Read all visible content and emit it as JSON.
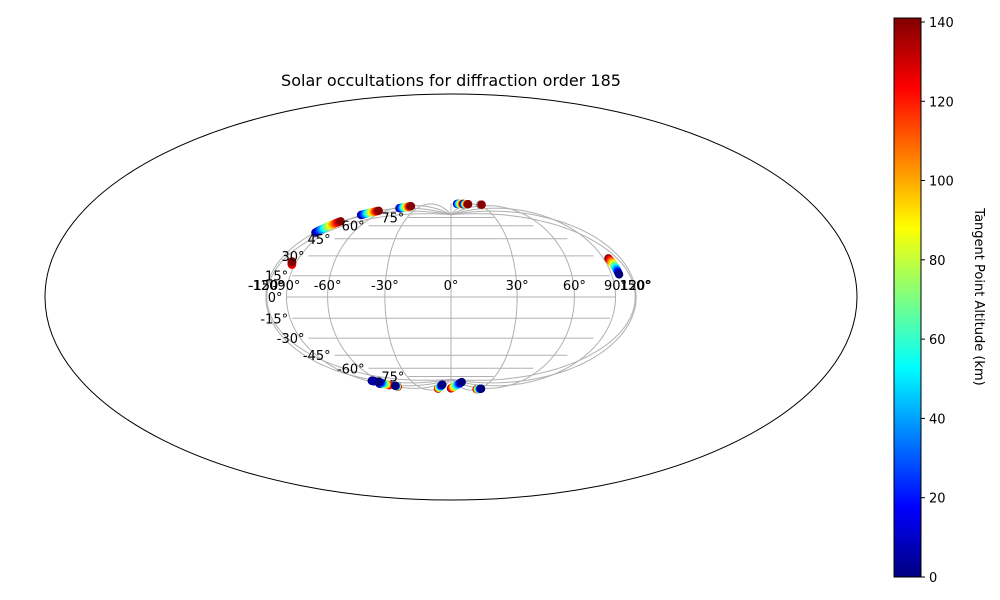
{
  "chart_data": {
    "type": "scatter",
    "projection": "aitoff",
    "title": "Solar occultations for diffraction order 185",
    "grid": true,
    "x_ticks": [
      "-150°",
      "-120°",
      "-90°",
      "-60°",
      "-30°",
      "0°",
      "30°",
      "60°",
      "90°",
      "120°",
      "150°"
    ],
    "y_ticks": [
      "75°",
      "60°",
      "45°",
      "30°",
      "15°",
      "0°",
      "-15°",
      "-30°",
      "-45°",
      "-60°",
      "-75°"
    ],
    "colorbar": {
      "label": "Tangent Point Altitude (km)",
      "colormap": "jet",
      "range": [
        0,
        141
      ],
      "ticks": [
        "0",
        "20",
        "40",
        "60",
        "80",
        "100",
        "120",
        "140"
      ],
      "tick_values": [
        0,
        20,
        40,
        60,
        80,
        100,
        120,
        140
      ],
      "colors": [
        "#00007f",
        "#0000ff",
        "#007fff",
        "#00ffff",
        "#7fff7f",
        "#ffff00",
        "#ff7f00",
        "#ff0000",
        "#7f0000"
      ]
    },
    "series": [
      {
        "lon": [
          -171,
          -167
        ],
        "lat": [
          22,
          24
        ],
        "alt": [
          120,
          140
        ]
      },
      {
        "lon": [
          -103,
          -93
        ],
        "lat": [
          55,
          60
        ],
        "alt": [
          0,
          140
        ]
      },
      {
        "lon": [
          -124,
          -108
        ],
        "lat": [
          40,
          48
        ],
        "alt": [
          0,
          140
        ]
      },
      {
        "lon": [
          -51,
          -43
        ],
        "lat": [
          56,
          59
        ],
        "alt": [
          0,
          140
        ]
      },
      {
        "lon": [
          7,
          15
        ],
        "lat": [
          62,
          62
        ],
        "alt": [
          0,
          140
        ]
      },
      {
        "lon": [
          14,
          20
        ],
        "lat": [
          61,
          62
        ],
        "alt": [
          0,
          140
        ]
      },
      {
        "lon": [
          35,
          38
        ],
        "lat": [
          62,
          63
        ],
        "alt": [
          0,
          140
        ]
      },
      {
        "lon": [
          165,
          168
        ],
        "lat": [
          26,
          15
        ],
        "alt": [
          140,
          0
        ]
      },
      {
        "lon": [
          -13,
          -7
        ],
        "lat": [
          -58,
          -51
        ],
        "alt": [
          140,
          0
        ]
      },
      {
        "lon": [
          0,
          8
        ],
        "lat": [
          -57,
          -48
        ],
        "alt": [
          140,
          0
        ]
      },
      {
        "lon": [
          -110,
          -110
        ],
        "lat": [
          -60,
          -61
        ],
        "alt": [
          0,
          5
        ]
      },
      {
        "lon": [
          -87,
          -83
        ],
        "lat": [
          -60,
          -58
        ],
        "alt": [
          140,
          0
        ]
      },
      {
        "lon": [
          -68,
          -66
        ],
        "lat": [
          -58,
          -52
        ],
        "alt": [
          140,
          0
        ]
      },
      {
        "lon": [
          -62,
          -58
        ],
        "lat": [
          -60,
          -57
        ],
        "alt": [
          140,
          0
        ]
      },
      {
        "lon": [
          29,
          33
        ],
        "lat": [
          -61,
          -60
        ],
        "alt": [
          140,
          0
        ]
      }
    ]
  }
}
